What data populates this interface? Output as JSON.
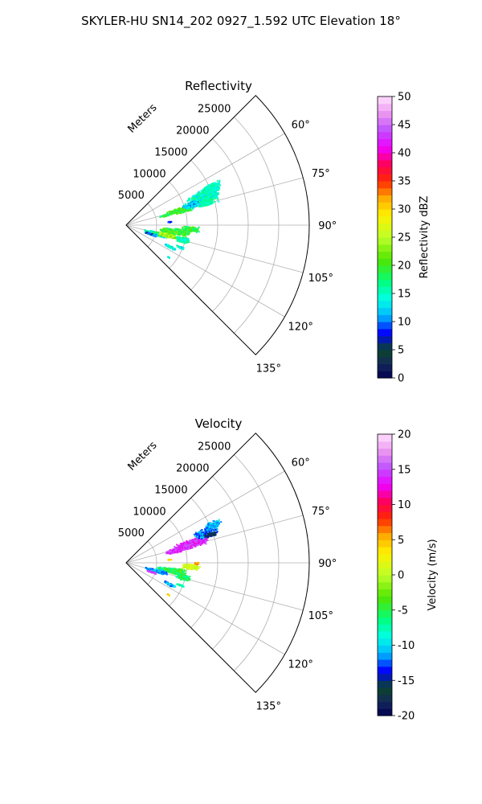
{
  "figure": {
    "title": "SKYLER-HU  SN14_202  0927_1.592 UTC Elevation 18°"
  },
  "chart_data": [
    {
      "type": "polar-sector",
      "title": "Reflectivity",
      "range_label": "Meters",
      "theta_ticks": [
        60,
        75,
        90,
        105,
        120,
        135
      ],
      "theta_tick_labels": [
        "60°",
        "75°",
        "90°",
        "105°",
        "120°",
        "135°"
      ],
      "theta_range_deg": [
        45,
        135
      ],
      "r_ticks": [
        5000,
        10000,
        15000,
        20000,
        25000
      ],
      "r_tick_labels": [
        "5000",
        "10000",
        "15000",
        "20000",
        "25000"
      ],
      "r_max": 30000,
      "grid": true,
      "colorbar": {
        "label": "Reflectivity dBZ",
        "min": 0,
        "max": 50,
        "ticks": [
          0,
          5,
          10,
          15,
          20,
          25,
          30,
          35,
          40,
          45,
          50
        ],
        "tick_labels": [
          "0",
          "5",
          "10",
          "15",
          "20",
          "25",
          "30",
          "35",
          "40",
          "45",
          "50"
        ]
      },
      "echo_regions": [
        {
          "theta": 71,
          "r": 13000,
          "dtheta": 5.0,
          "dr": 3000,
          "value": 16,
          "spread": 2
        },
        {
          "theta": 68,
          "r": 14000,
          "dtheta": 4.0,
          "dr": 2200,
          "value": 15,
          "spread": 3
        },
        {
          "theta": 66,
          "r": 15500,
          "dtheta": 3.0,
          "dr": 1500,
          "value": 15,
          "spread": 2
        },
        {
          "theta": 74,
          "r": 9000,
          "dtheta": 3.0,
          "dr": 2200,
          "value": 20,
          "spread": 3
        },
        {
          "theta": 75,
          "r": 6500,
          "dtheta": 1.5,
          "dr": 1000,
          "value": 18,
          "spread": 4
        },
        {
          "theta": 72,
          "r": 11000,
          "dtheta": 2.5,
          "dr": 1500,
          "value": 12,
          "spread": 3
        },
        {
          "theta": 85,
          "r": 7000,
          "dtheta": 1.2,
          "dr": 400,
          "value": 8,
          "spread": 3
        },
        {
          "theta": 97,
          "r": 8000,
          "dtheta": 4.0,
          "dr": 2500,
          "value": 20,
          "spread": 4
        },
        {
          "theta": 93,
          "r": 10500,
          "dtheta": 2.5,
          "dr": 1500,
          "value": 19,
          "spread": 3
        },
        {
          "theta": 105,
          "r": 5000,
          "dtheta": 4.0,
          "dr": 2000,
          "value": 16,
          "spread": 5
        },
        {
          "theta": 109,
          "r": 4200,
          "dtheta": 2.0,
          "dr": 1200,
          "value": 10,
          "spread": 4
        },
        {
          "theta": 103,
          "r": 6800,
          "dtheta": 3.0,
          "dr": 1500,
          "value": 24,
          "spread": 3
        },
        {
          "theta": 104,
          "r": 9500,
          "dtheta": 3.0,
          "dr": 1200,
          "value": 16,
          "spread": 3
        },
        {
          "theta": 116,
          "r": 7800,
          "dtheta": 1.5,
          "dr": 1200,
          "value": 14,
          "spread": 3
        },
        {
          "theta": 112,
          "r": 9500,
          "dtheta": 1.0,
          "dr": 800,
          "value": 14,
          "spread": 3
        },
        {
          "theta": 127,
          "r": 8600,
          "dtheta": 0.5,
          "dr": 300,
          "value": 14,
          "spread": 2
        }
      ]
    },
    {
      "type": "polar-sector",
      "title": "Velocity",
      "range_label": "Meters",
      "theta_ticks": [
        60,
        75,
        90,
        105,
        120,
        135
      ],
      "theta_tick_labels": [
        "60°",
        "75°",
        "90°",
        "105°",
        "120°",
        "135°"
      ],
      "theta_range_deg": [
        45,
        135
      ],
      "r_ticks": [
        5000,
        10000,
        15000,
        20000,
        25000
      ],
      "r_tick_labels": [
        "5000",
        "10000",
        "15000",
        "20000",
        "25000"
      ],
      "r_max": 30000,
      "grid": true,
      "colorbar": {
        "label": "Velocity (m/s)",
        "min": -20,
        "max": 20,
        "ticks": [
          -20,
          -15,
          -10,
          -5,
          0,
          5,
          10,
          15,
          20
        ],
        "tick_labels": [
          "-20",
          "-15",
          "-10",
          "-5",
          "0",
          "5",
          "10",
          "15",
          "20"
        ]
      },
      "echo_regions": [
        {
          "theta": 73,
          "r": 11000,
          "dtheta": 4.0,
          "dr": 3000,
          "value": 14,
          "spread": 2
        },
        {
          "theta": 75,
          "r": 8500,
          "dtheta": 3.0,
          "dr": 2000,
          "value": 14,
          "spread": 2
        },
        {
          "theta": 69,
          "r": 14000,
          "dtheta": 3.5,
          "dr": 2000,
          "value": -12,
          "spread": 2
        },
        {
          "theta": 66,
          "r": 15500,
          "dtheta": 2.5,
          "dr": 1500,
          "value": -11,
          "spread": 2
        },
        {
          "theta": 71,
          "r": 14500,
          "dtheta": 1.5,
          "dr": 1200,
          "value": -16,
          "spread": 2
        },
        {
          "theta": 85,
          "r": 7000,
          "dtheta": 1.0,
          "dr": 300,
          "value": 4,
          "spread": 2
        },
        {
          "theta": 93,
          "r": 10500,
          "dtheta": 2.5,
          "dr": 1600,
          "value": 1,
          "spread": 2
        },
        {
          "theta": 90,
          "r": 11500,
          "dtheta": 1.2,
          "dr": 500,
          "value": 6,
          "spread": 2
        },
        {
          "theta": 99,
          "r": 7500,
          "dtheta": 3.5,
          "dr": 2500,
          "value": -5,
          "spread": 3
        },
        {
          "theta": 104,
          "r": 5000,
          "dtheta": 3.0,
          "dr": 2000,
          "value": -11,
          "spread": 2
        },
        {
          "theta": 109,
          "r": 4300,
          "dtheta": 1.5,
          "dr": 800,
          "value": 15,
          "spread": 2
        },
        {
          "theta": 104,
          "r": 9500,
          "dtheta": 3.0,
          "dr": 1200,
          "value": -6,
          "spread": 3
        },
        {
          "theta": 116,
          "r": 7800,
          "dtheta": 1.5,
          "dr": 1200,
          "value": -11,
          "spread": 2
        },
        {
          "theta": 112,
          "r": 9500,
          "dtheta": 1.0,
          "dr": 800,
          "value": -7,
          "spread": 2
        },
        {
          "theta": 127,
          "r": 8600,
          "dtheta": 0.5,
          "dr": 300,
          "value": 4,
          "spread": 2
        }
      ]
    }
  ]
}
